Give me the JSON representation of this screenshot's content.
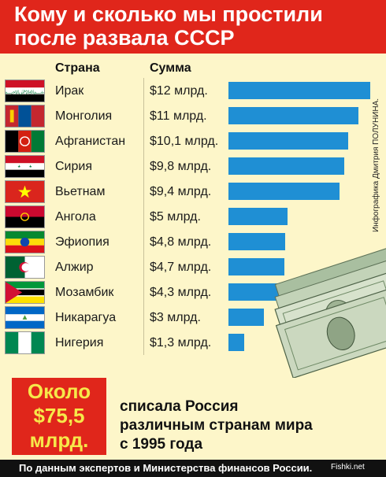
{
  "header": {
    "title_line1": "Кому и сколько мы простили",
    "title_line2": "после развала СССР"
  },
  "columns": {
    "country": "Страна",
    "amount": "Сумма"
  },
  "chart_data": {
    "type": "bar",
    "orientation": "horizontal",
    "categories": [
      "Ирак",
      "Монголия",
      "Афганистан",
      "Сирия",
      "Вьетнам",
      "Ангола",
      "Эфиопия",
      "Алжир",
      "Мозамбик",
      "Никарагуа",
      "Нигерия"
    ],
    "values": [
      12,
      11,
      10.1,
      9.8,
      9.4,
      5,
      4.8,
      4.7,
      4.3,
      3,
      1.3
    ],
    "value_labels": [
      "$12 млрд.",
      "$11 млрд.",
      "$10,1 млрд.",
      "$9,8 млрд.",
      "$9,4 млрд.",
      "$5 млрд.",
      "$4,8 млрд.",
      "$4,7 млрд.",
      "$4,3 млрд.",
      "$3 млрд.",
      "$1,3 млрд."
    ],
    "flags": [
      "iraq",
      "mongolia",
      "afghanistan",
      "syria",
      "vietnam",
      "angola",
      "ethiopia",
      "algeria",
      "mozambique",
      "nicaragua",
      "nigeria"
    ],
    "bar_color": "#1f8fd4",
    "xlim": [
      0,
      12
    ],
    "legend": "none",
    "grid": false
  },
  "credit": "Инфографика Дмитрия ПОЛУНИНА.",
  "summary": {
    "big_line1": "Около",
    "big_line2": "$75,5",
    "big_line3": "млрд.",
    "text_line1": "списала Россия",
    "text_line2": "различным странам мира",
    "text_line3": "с 1995 года"
  },
  "footer": {
    "source": "По данным экспертов и Министерства финансов России.",
    "logo": "Fishki.net"
  },
  "colors": {
    "header_red": "#e0261b",
    "background": "#fdf6c9",
    "highlight_yellow": "#f6e84a",
    "bar_blue": "#1f8fd4"
  }
}
